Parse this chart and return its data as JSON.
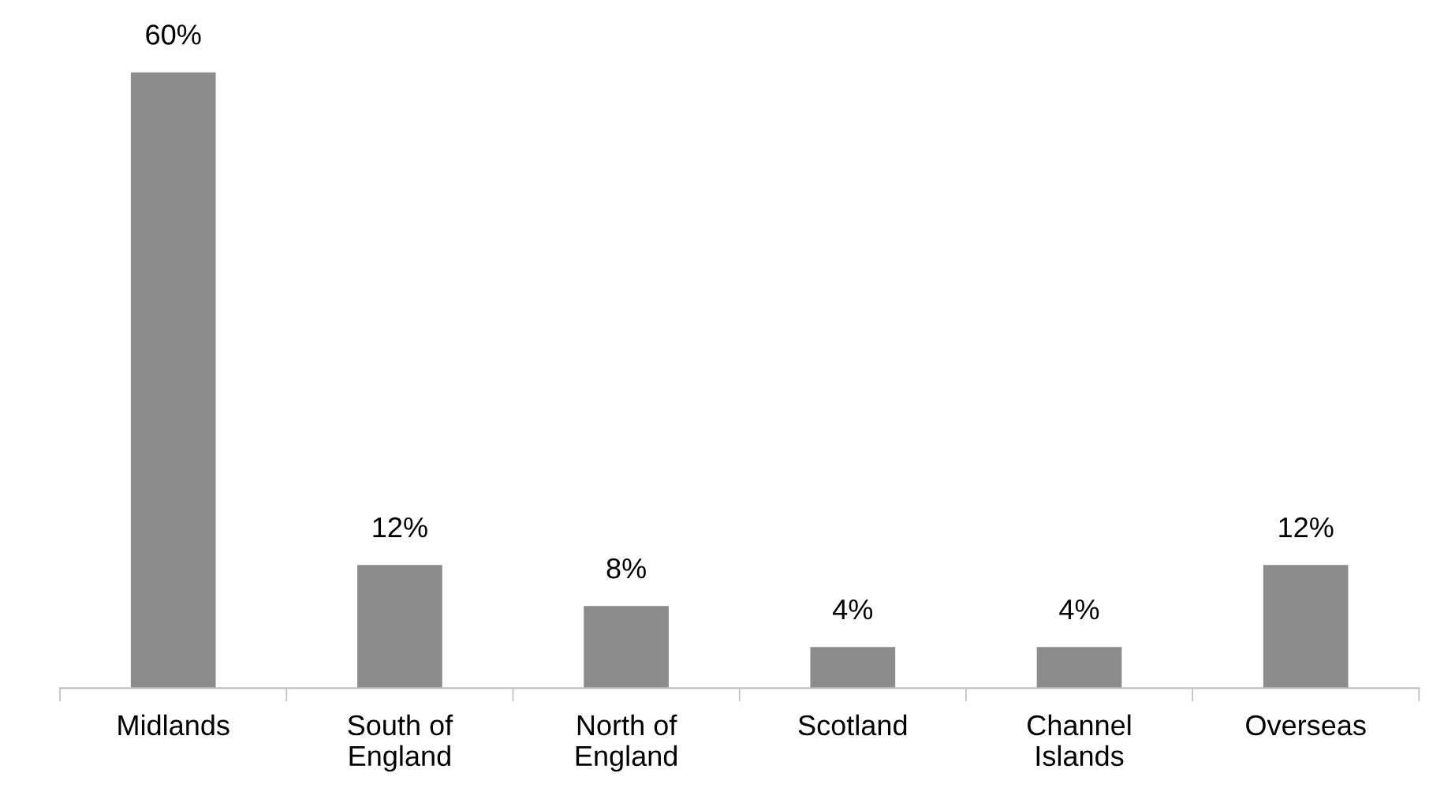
{
  "chart_data": {
    "type": "bar",
    "categories": [
      "Midlands",
      "South of\nEngland",
      "North of\nEngland",
      "Scotland",
      "Channel\nIslands",
      "Overseas"
    ],
    "values": [
      60,
      12,
      8,
      4,
      4,
      12
    ],
    "value_labels": [
      "60%",
      "12%",
      "8%",
      "4%",
      "4%",
      "12%"
    ],
    "tick_labels": "x",
    "color": "#8c8c8c",
    "grid": false,
    "legend": false
  }
}
